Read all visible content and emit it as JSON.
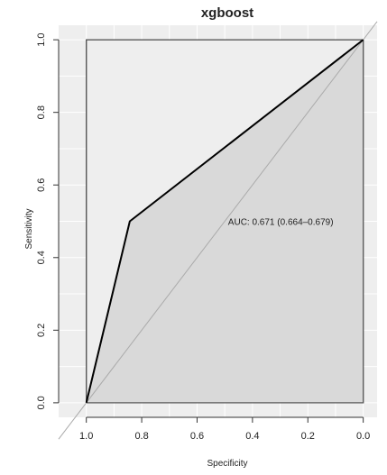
{
  "chart_data": {
    "type": "line",
    "title": "xgboost",
    "xlabel": "Specificity",
    "ylabel": "Sensitivity",
    "xlim": [
      1.1,
      -0.05
    ],
    "ylim": [
      -0.04,
      1.04
    ],
    "x_reversed": true,
    "x_ticks": [
      1.0,
      0.8,
      0.6,
      0.4,
      0.2,
      0.0
    ],
    "x_tick_labels": [
      "1.0",
      "0.8",
      "0.6",
      "0.4",
      "0.2",
      "0.0"
    ],
    "y_ticks": [
      0.0,
      0.2,
      0.4,
      0.6,
      0.8,
      1.0
    ],
    "y_tick_labels": [
      "0.0",
      "0.2",
      "0.4",
      "0.6",
      "0.8",
      "1.0"
    ],
    "grid": true,
    "series": [
      {
        "x": [
          1.0,
          0.843,
          0.0
        ],
        "y": [
          0.0,
          0.5,
          1.0
        ]
      }
    ],
    "reference_line": {
      "x": [
        1.1,
        -0.05
      ],
      "y": [
        -0.1,
        1.05
      ]
    },
    "annotation": {
      "text": "AUC: 0.671 (0.664–0.679)",
      "x": 0.5,
      "y": 0.5
    },
    "colors": {
      "panel": "#eeeeee",
      "auc_fill": "#d9d9d9",
      "curve": "#000000",
      "diagonal": "#aaaaaa",
      "grid": "#ffffff"
    }
  }
}
